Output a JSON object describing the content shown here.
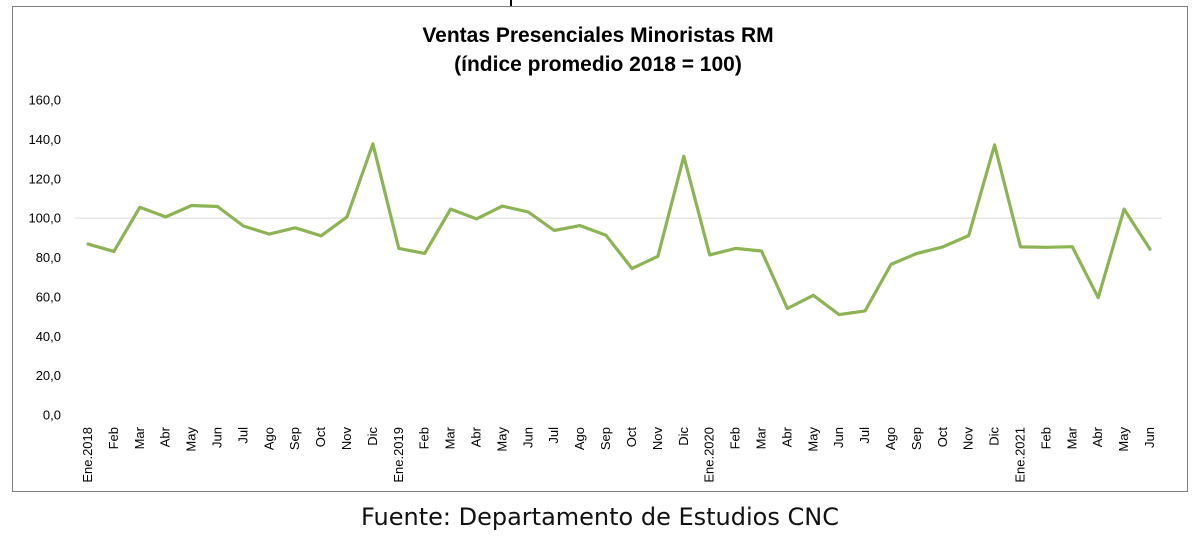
{
  "chart_data": {
    "type": "line",
    "title": "Ventas Presenciales Minoristas RM",
    "subtitle": "(índice promedio 2018 = 100)",
    "xlabel": "",
    "ylabel": "",
    "ylim": [
      0,
      160
    ],
    "yticks": [
      "0,0",
      "20,0",
      "40,0",
      "60,0",
      "80,0",
      "100,0",
      "120,0",
      "140,0",
      "160,0"
    ],
    "reference_line": 100,
    "categories": [
      "Ene.2018",
      "Feb",
      "Mar",
      "Abr",
      "May",
      "Jun",
      "Jul",
      "Ago",
      "Sep",
      "Oct",
      "Nov",
      "Dic",
      "Ene.2019",
      "Feb",
      "Mar",
      "Abr",
      "May",
      "Jun",
      "Jul",
      "Ago",
      "Sep",
      "Oct",
      "Nov",
      "Dic",
      "Ene.2020",
      "Feb",
      "Mar",
      "Abr",
      "May",
      "Jun",
      "Jul",
      "Ago",
      "Sep",
      "Oct",
      "Nov",
      "Dic",
      "Ene.2021",
      "Feb",
      "Mar",
      "Abr",
      "May",
      "Jun"
    ],
    "series": [
      {
        "name": "",
        "color": "#8cb454",
        "values": [
          86.8,
          83.1,
          105.5,
          100.6,
          106.4,
          105.9,
          96.0,
          91.9,
          95.1,
          91.0,
          100.6,
          137.7,
          84.6,
          82.1,
          104.6,
          99.6,
          106.1,
          103.1,
          93.7,
          96.2,
          91.3,
          74.4,
          80.6,
          131.4,
          81.3,
          84.6,
          83.3,
          54.1,
          60.8,
          51.0,
          52.9,
          76.5,
          82.1,
          85.4,
          91.1,
          137.2,
          85.4,
          85.2,
          85.5,
          59.6,
          104.6,
          84.2
        ]
      }
    ],
    "grid": false,
    "legend": "none"
  },
  "source": "Fuente: Departamento de Estudios CNC"
}
